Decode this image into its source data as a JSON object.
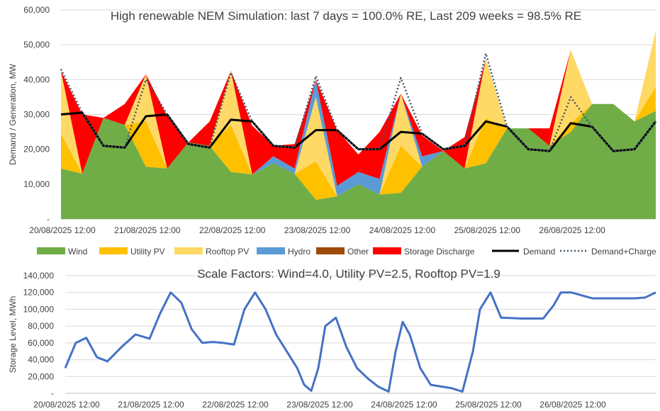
{
  "chart_data": [
    {
      "type": "area",
      "title": "High renewable NEM Simulation: last 7 days = 100.0% RE, Last 209 weeks = 98.5% RE",
      "xlabel": "",
      "ylabel": "Demand / Generation, MW",
      "ylim": [
        0,
        60000
      ],
      "y_ticks": [
        "-",
        "10,000",
        "20,000",
        "30,000",
        "40,000",
        "50,000",
        "60,000"
      ],
      "x_tick_labels": [
        "20/08/2025 12:00",
        "21/08/2025 12:00",
        "22/08/2025 12:00",
        "23/08/2025 12:00",
        "24/08/2025 12:00",
        "25/08/2025 12:00",
        "26/08/2025 12:00"
      ],
      "x_hours": [
        0,
        6,
        12,
        18,
        24,
        30,
        36,
        42,
        48,
        54,
        60,
        66,
        72,
        78,
        84,
        90,
        96,
        102,
        108,
        114,
        120,
        126,
        132,
        138,
        144,
        150,
        156,
        162,
        168
      ],
      "series": [
        {
          "name": "Wind",
          "color": "#70ad47",
          "values": [
            14500,
            13000,
            29000,
            27000,
            15000,
            14500,
            22000,
            21000,
            13500,
            12800,
            16000,
            13000,
            5500,
            6500,
            10000,
            7000,
            7500,
            15000,
            19500,
            14500,
            16000,
            26000,
            26000,
            21000,
            25000,
            33000,
            33000,
            28000,
            31000
          ]
        },
        {
          "name": "Utility PV",
          "color": "#ffc000",
          "values": [
            10000,
            0,
            0,
            0,
            13000,
            0,
            0,
            0,
            13500,
            0,
            0,
            0,
            11000,
            0,
            0,
            0,
            13500,
            0,
            0,
            0,
            13000,
            0,
            0,
            0,
            2500,
            0,
            0,
            0,
            7000
          ]
        },
        {
          "name": "Rooftop PV",
          "color": "#ffd966",
          "values": [
            18000,
            0,
            0,
            0,
            13500,
            0,
            0,
            0,
            15500,
            0,
            0,
            0,
            18500,
            0,
            0,
            0,
            15000,
            0,
            0,
            0,
            17000,
            0,
            0,
            0,
            21000,
            0,
            0,
            0,
            16000
          ]
        },
        {
          "name": "Hydro",
          "color": "#5b9bd5",
          "values": [
            0,
            0,
            0,
            0,
            0,
            0,
            0,
            0,
            0,
            0,
            2000,
            1500,
            5000,
            3000,
            3500,
            4500,
            0,
            3000,
            0,
            0,
            0,
            0,
            0,
            0,
            0,
            0,
            0,
            0,
            0
          ]
        },
        {
          "name": "Other",
          "color": "#9c4a0a",
          "values": [
            0,
            0,
            0,
            0,
            0,
            0,
            0,
            0,
            0,
            0,
            0,
            0,
            0,
            0,
            0,
            0,
            0,
            0,
            0,
            0,
            0,
            0,
            0,
            0,
            0,
            0,
            0,
            0,
            0
          ]
        },
        {
          "name": "Storage Discharge",
          "color": "#ff0000",
          "values": [
            0,
            17000,
            0,
            6000,
            0,
            15000,
            0,
            7000,
            0,
            14000,
            3000,
            7000,
            0,
            16000,
            5000,
            13500,
            0,
            6000,
            0,
            9000,
            0,
            0,
            0,
            5000,
            0,
            0,
            0,
            0,
            0
          ]
        },
        {
          "name": "Demand",
          "color": "#000000",
          "style": "solid",
          "values": [
            30000,
            30500,
            21000,
            20500,
            29500,
            30000,
            21500,
            20500,
            28500,
            28000,
            21000,
            20500,
            25500,
            25500,
            20000,
            20000,
            25000,
            24500,
            20000,
            21000,
            28000,
            26500,
            20000,
            19500,
            27500,
            26500,
            19500,
            20000,
            28000
          ]
        },
        {
          "name": "Demand+Charge",
          "color": "#44546a",
          "style": "dotted",
          "values": [
            43000,
            30500,
            21000,
            20500,
            40000,
            30000,
            21500,
            20500,
            42000,
            28000,
            21000,
            20500,
            41000,
            25500,
            20000,
            20000,
            40500,
            24500,
            20000,
            21000,
            47500,
            26500,
            20000,
            19500,
            35000,
            26500,
            19500,
            20000,
            28000
          ]
        }
      ]
    },
    {
      "type": "line",
      "title": "Scale Factors: Wind=4.0, Utility PV=2.5, Rooftop PV=1.9",
      "xlabel": "",
      "ylabel": "Storage Level, MWh",
      "ylim": [
        0,
        140000
      ],
      "y_ticks": [
        "-",
        "20,000",
        "40,000",
        "60,000",
        "80,000",
        "100,000",
        "120,000",
        "140,000"
      ],
      "x_tick_labels": [
        "20/08/2025 12:00",
        "21/08/2025 12:00",
        "22/08/2025 12:00",
        "23/08/2025 12:00",
        "24/08/2025 12:00",
        "25/08/2025 12:00",
        "26/08/2025 12:00"
      ],
      "series": [
        {
          "name": "Storage Level",
          "color": "#4472c4",
          "x_hours": [
            0,
            3,
            6,
            9,
            12,
            16,
            20,
            24,
            27,
            30,
            33,
            36,
            39,
            42,
            45,
            48,
            51,
            54,
            57,
            60,
            63,
            66,
            68,
            70,
            72,
            74,
            77,
            80,
            83,
            86,
            89,
            92,
            94,
            96,
            98,
            101,
            104,
            107,
            110,
            113,
            116,
            118,
            121,
            124,
            130,
            136,
            139,
            141,
            144,
            150,
            156,
            162,
            165,
            168
          ],
          "values": [
            30000,
            60000,
            66000,
            43000,
            38000,
            55000,
            70000,
            65000,
            95000,
            120000,
            108000,
            76000,
            60000,
            61000,
            60000,
            58000,
            100000,
            120000,
            100000,
            70000,
            50000,
            30000,
            10000,
            3000,
            30000,
            80000,
            90000,
            55000,
            30000,
            18000,
            8000,
            2000,
            50000,
            85000,
            70000,
            30000,
            10000,
            8000,
            6000,
            2000,
            50000,
            100000,
            120000,
            90000,
            89000,
            89000,
            105000,
            120000,
            120000,
            113000,
            113000,
            113000,
            114000,
            120000
          ]
        }
      ]
    }
  ]
}
